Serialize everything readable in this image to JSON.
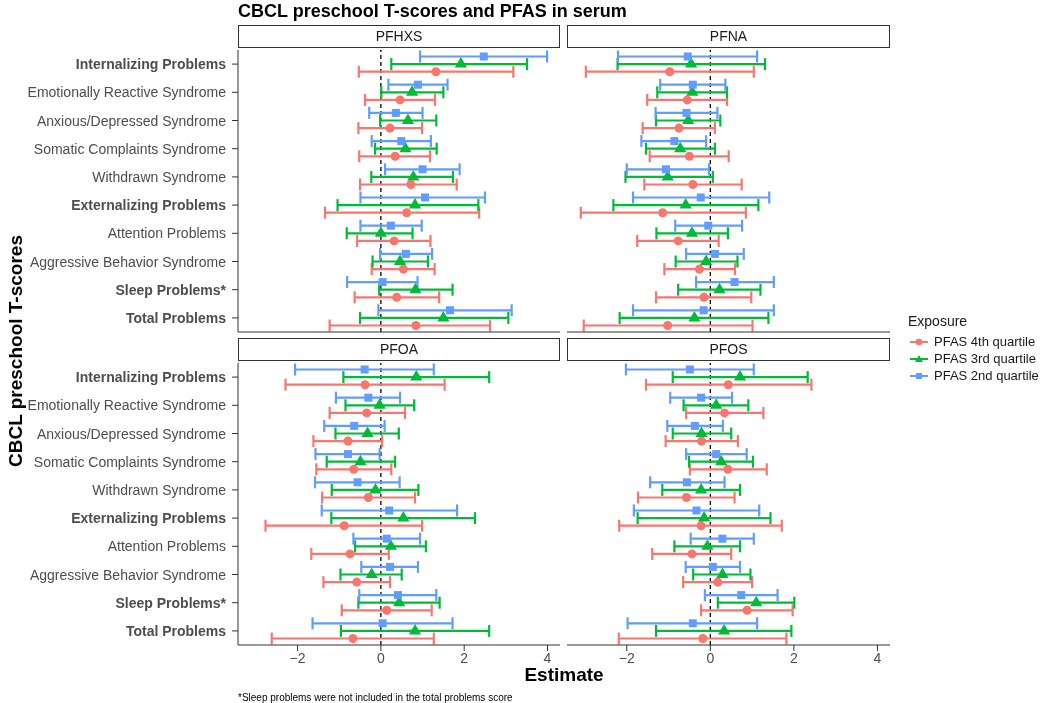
{
  "chart_data": [
    {
      "type": "scatter",
      "orientation": "horizontal",
      "title": "PFHXS",
      "annotations": [
        "CBCL preschool T-scores and PFAS in serum"
      ],
      "ylabel": "CBCL preschool T-scores",
      "legend_title": "Exposure",
      "legend": "right",
      "tick_labels": "y",
      "categories": [
        "Internalizing Problems",
        "Emotionally Reactive Syndrome",
        "Anxious/Depressed Syndrome",
        "Somatic Complaints Syndrome",
        "Withdrawn Syndrome",
        "Externalizing Problems",
        "Attention Problems",
        "Aggressive Behavior Syndrome",
        "Sleep Problems*",
        "Total Problems"
      ],
      "xlim": [
        -3.43,
        4.3
      ],
      "xticks": [
        -2,
        0,
        2,
        4
      ],
      "ref_lines": [
        {
          "axis": "x",
          "value": 0,
          "line_style": "dashed",
          "color": "#000000"
        }
      ],
      "series": [
        {
          "name": "PFAS 4th quartile",
          "color": "#f8766d",
          "marker": "circle",
          "values": [
            1.32,
            0.46,
            0.22,
            0.34,
            0.72,
            0.62,
            0.32,
            0.54,
            0.38,
            0.84
          ],
          "errors": [
            [
              -0.53,
              3.18
            ],
            [
              -0.38,
              1.3
            ],
            [
              -0.54,
              0.99
            ],
            [
              -0.52,
              1.18
            ],
            [
              -0.5,
              1.82
            ],
            [
              -1.34,
              2.36
            ],
            [
              -0.57,
              1.19
            ],
            [
              -0.22,
              1.29
            ],
            [
              -0.63,
              1.4
            ],
            [
              -1.23,
              2.62
            ]
          ]
        },
        {
          "name": "PFAS 3rd quartile",
          "color": "#00ba38",
          "marker": "triangle",
          "values": [
            1.92,
            0.75,
            0.65,
            0.59,
            0.78,
            0.82,
            0,
            0.46,
            0.83,
            1.5
          ],
          "errors": [
            [
              0.25,
              3.51
            ],
            [
              0.01,
              1.5
            ],
            [
              -0.02,
              1.33
            ],
            [
              -0.14,
              1.34
            ],
            [
              -0.23,
              1.73
            ],
            [
              -1.04,
              2.34
            ],
            [
              -0.82,
              0.76
            ],
            [
              -0.2,
              1.13
            ],
            [
              -0.04,
              1.72
            ],
            [
              -0.5,
              3.06
            ]
          ]
        },
        {
          "name": "PFAS 2nd quartile",
          "color": "#619cff",
          "marker": "square",
          "values": [
            2.47,
            0.89,
            0.36,
            0.49,
            1.0,
            1.06,
            0.24,
            0.6,
            0.04,
            1.66
          ],
          "errors": [
            [
              0.94,
              3.99
            ],
            [
              0.18,
              1.6
            ],
            [
              -0.28,
              1.0
            ],
            [
              -0.22,
              1.2
            ],
            [
              0.1,
              1.89
            ],
            [
              -0.49,
              2.5
            ],
            [
              -0.49,
              0.98
            ],
            [
              -0.02,
              1.23
            ],
            [
              -0.81,
              0.88
            ],
            [
              -0.06,
              3.14
            ]
          ]
        }
      ]
    },
    {
      "type": "scatter",
      "orientation": "horizontal",
      "title": "PFNA",
      "tick_labels": false,
      "categories": [
        "Internalizing Problems",
        "Emotionally Reactive Syndrome",
        "Anxious/Depressed Syndrome",
        "Somatic Complaints Syndrome",
        "Withdrawn Syndrome",
        "Externalizing Problems",
        "Attention Problems",
        "Aggressive Behavior Syndrome",
        "Sleep Problems*",
        "Total Problems"
      ],
      "xlim": [
        -3.43,
        4.3
      ],
      "xticks": [
        -2,
        0,
        2,
        4
      ],
      "ref_lines": [
        {
          "axis": "x",
          "value": 0,
          "line_style": "dashed",
          "color": "#000000"
        }
      ],
      "series": [
        {
          "name": "PFAS 4th quartile",
          "color": "#f8766d",
          "marker": "circle",
          "values": [
            -0.97,
            -0.55,
            -0.75,
            -0.5,
            -0.42,
            -1.14,
            -0.77,
            -0.26,
            -0.15,
            -1.02
          ],
          "errors": [
            [
              -2.98,
              1.04
            ],
            [
              -1.51,
              0.4
            ],
            [
              -1.62,
              0.11
            ],
            [
              -1.45,
              0.44
            ],
            [
              -1.58,
              0.75
            ],
            [
              -3.1,
              0.85
            ],
            [
              -1.75,
              0.2
            ],
            [
              -1.1,
              0.59
            ],
            [
              -1.3,
              0.98
            ],
            [
              -3.03,
              1.01
            ]
          ]
        },
        {
          "name": "PFAS 3rd quartile",
          "color": "#00ba38",
          "marker": "triangle",
          "values": [
            -0.46,
            -0.43,
            -0.53,
            -0.72,
            -1.02,
            -0.59,
            -0.44,
            -0.1,
            0.22,
            -0.38
          ],
          "errors": [
            [
              -2.22,
              1.31
            ],
            [
              -1.27,
              0.4
            ],
            [
              -1.3,
              0.24
            ],
            [
              -1.54,
              0.11
            ],
            [
              -2.03,
              0.06
            ],
            [
              -2.32,
              1.15
            ],
            [
              -1.29,
              0.42
            ],
            [
              -0.83,
              0.65
            ],
            [
              -0.77,
              1.2
            ],
            [
              -2.17,
              1.39
            ]
          ]
        },
        {
          "name": "PFAS 2nd quartile",
          "color": "#619cff",
          "marker": "square",
          "values": [
            -0.54,
            -0.42,
            -0.57,
            -0.86,
            -1.06,
            -0.23,
            -0.05,
            0.11,
            0.58,
            -0.16
          ],
          "errors": [
            [
              -2.21,
              1.12
            ],
            [
              -1.2,
              0.36
            ],
            [
              -1.31,
              0.17
            ],
            [
              -1.65,
              -0.1
            ],
            [
              -2.0,
              -0.03
            ],
            [
              -1.85,
              1.41
            ],
            [
              -0.84,
              0.76
            ],
            [
              -0.58,
              0.8
            ],
            [
              -0.34,
              1.52
            ],
            [
              -1.85,
              1.52
            ]
          ]
        }
      ]
    },
    {
      "type": "scatter",
      "orientation": "horizontal",
      "title": "PFOA",
      "xlabel": "Estimate",
      "annotations": [
        "*Sleep problems were not included in the total problems score"
      ],
      "categories": [
        "Internalizing Problems",
        "Emotionally Reactive Syndrome",
        "Anxious/Depressed Syndrome",
        "Somatic Complaints Syndrome",
        "Withdrawn Syndrome",
        "Externalizing Problems",
        "Attention Problems",
        "Aggressive Behavior Syndrome",
        "Sleep Problems*",
        "Total Problems"
      ],
      "xlim": [
        -3.43,
        4.3
      ],
      "xticks": [
        -2,
        0,
        2,
        4
      ],
      "ref_lines": [
        {
          "axis": "x",
          "value": 0,
          "line_style": "dashed",
          "color": "#000000"
        }
      ],
      "series": [
        {
          "name": "PFAS 4th quartile",
          "color": "#f8766d",
          "marker": "circle",
          "values": [
            -0.38,
            -0.34,
            -0.79,
            -0.65,
            -0.3,
            -0.88,
            -0.74,
            -0.58,
            0.14,
            -0.67
          ],
          "errors": [
            [
              -2.29,
              1.53
            ],
            [
              -1.23,
              0.58
            ],
            [
              -1.62,
              0.03
            ],
            [
              -1.55,
              0.25
            ],
            [
              -1.41,
              0.82
            ],
            [
              -2.77,
              0.99
            ],
            [
              -1.67,
              0.19
            ],
            [
              -1.38,
              0.22
            ],
            [
              -0.94,
              1.22
            ],
            [
              -2.62,
              1.27
            ]
          ]
        },
        {
          "name": "PFAS 3rd quartile",
          "color": "#00ba38",
          "marker": "triangle",
          "values": [
            0.85,
            -0.03,
            -0.32,
            -0.49,
            -0.13,
            0.54,
            0.24,
            -0.22,
            0.44,
            0.82
          ],
          "errors": [
            [
              -0.9,
              2.6
            ],
            [
              -0.85,
              0.8
            ],
            [
              -1.09,
              0.43
            ],
            [
              -1.3,
              0.34
            ],
            [
              -1.18,
              0.9
            ],
            [
              -1.19,
              2.26
            ],
            [
              -0.62,
              1.08
            ],
            [
              -0.97,
              0.5
            ],
            [
              -0.54,
              1.41
            ],
            [
              -0.96,
              2.6
            ]
          ]
        },
        {
          "name": "PFAS 2nd quartile",
          "color": "#619cff",
          "marker": "square",
          "values": [
            -0.39,
            -0.3,
            -0.64,
            -0.79,
            -0.56,
            0.2,
            0.14,
            0.22,
            0.41,
            0.04
          ],
          "errors": [
            [
              -2.06,
              1.27
            ],
            [
              -1.08,
              0.46
            ],
            [
              -1.36,
              0.09
            ],
            [
              -1.57,
              -0.03
            ],
            [
              -1.58,
              0.45
            ],
            [
              -1.42,
              1.83
            ],
            [
              -0.66,
              0.94
            ],
            [
              -0.47,
              0.89
            ],
            [
              -0.52,
              1.33
            ],
            [
              -1.64,
              1.72
            ]
          ]
        }
      ]
    },
    {
      "type": "scatter",
      "orientation": "horizontal",
      "title": "PFOS",
      "tick_labels": "x",
      "categories": [
        "Internalizing Problems",
        "Emotionally Reactive Syndrome",
        "Anxious/Depressed Syndrome",
        "Somatic Complaints Syndrome",
        "Withdrawn Syndrome",
        "Externalizing Problems",
        "Attention Problems",
        "Aggressive Behavior Syndrome",
        "Sleep Problems*",
        "Total Problems"
      ],
      "xlim": [
        -3.43,
        4.3
      ],
      "xticks": [
        -2,
        0,
        2,
        4
      ],
      "ref_lines": [
        {
          "axis": "x",
          "value": 0,
          "line_style": "dashed",
          "color": "#000000"
        }
      ],
      "series": [
        {
          "name": "PFAS 4th quartile",
          "color": "#f8766d",
          "marker": "circle",
          "values": [
            0.43,
            0.34,
            -0.21,
            0.42,
            -0.57,
            -0.22,
            -0.44,
            0.18,
            0.88,
            -0.18
          ],
          "errors": [
            [
              -1.54,
              2.42
            ],
            [
              -0.58,
              1.27
            ],
            [
              -1.07,
              0.66
            ],
            [
              -0.49,
              1.35
            ],
            [
              -1.73,
              0.58
            ],
            [
              -2.18,
              1.71
            ],
            [
              -1.39,
              0.5
            ],
            [
              -0.65,
              1.0
            ],
            [
              -0.22,
              1.97
            ],
            [
              -2.19,
              1.82
            ]
          ]
        },
        {
          "name": "PFAS 3rd quartile",
          "color": "#00ba38",
          "marker": "triangle",
          "values": [
            0.71,
            0.14,
            -0.21,
            0.26,
            -0.22,
            -0.15,
            -0.07,
            0.29,
            1.1,
            0.33
          ],
          "errors": [
            [
              -0.9,
              2.33
            ],
            [
              -0.64,
              0.91
            ],
            [
              -0.9,
              0.5
            ],
            [
              -0.51,
              1.02
            ],
            [
              -1.15,
              0.71
            ],
            [
              -1.74,
              1.44
            ],
            [
              -0.86,
              0.71
            ],
            [
              -0.41,
              0.96
            ],
            [
              0.18,
              2.01
            ],
            [
              -1.3,
              1.94
            ]
          ]
        },
        {
          "name": "PFAS 2nd quartile",
          "color": "#619cff",
          "marker": "square",
          "values": [
            -0.49,
            -0.22,
            -0.37,
            0.14,
            -0.56,
            -0.33,
            0.29,
            0.06,
            0.74,
            -0.42
          ],
          "errors": [
            [
              -2.02,
              1.04
            ],
            [
              -0.96,
              0.52
            ],
            [
              -1.03,
              0.3
            ],
            [
              -0.58,
              0.87
            ],
            [
              -1.44,
              0.34
            ],
            [
              -1.83,
              1.17
            ],
            [
              -0.47,
              1.04
            ],
            [
              -0.59,
              0.71
            ],
            [
              -0.13,
              1.61
            ],
            [
              -1.98,
              1.12
            ]
          ]
        }
      ]
    }
  ]
}
